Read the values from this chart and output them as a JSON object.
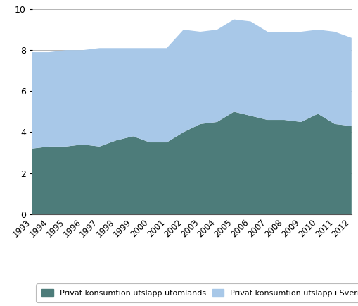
{
  "years": [
    1993,
    1994,
    1995,
    1996,
    1997,
    1998,
    1999,
    2000,
    2001,
    2002,
    2003,
    2004,
    2005,
    2006,
    2007,
    2008,
    2009,
    2010,
    2011,
    2012
  ],
  "utomlands": [
    3.2,
    3.3,
    3.3,
    3.4,
    3.3,
    3.6,
    3.8,
    3.5,
    3.5,
    4.0,
    4.4,
    4.5,
    5.0,
    4.8,
    4.6,
    4.6,
    4.5,
    4.9,
    4.4,
    4.3
  ],
  "sverige": [
    4.7,
    4.6,
    4.7,
    4.6,
    4.8,
    4.5,
    4.3,
    4.6,
    4.6,
    5.0,
    4.5,
    4.5,
    4.5,
    4.6,
    4.3,
    4.3,
    4.4,
    4.1,
    4.5,
    4.3
  ],
  "color_utomlands": "#4d7c7a",
  "color_sverige": "#a8c8e8",
  "ylim": [
    0,
    10
  ],
  "yticks": [
    0,
    2,
    4,
    6,
    8,
    10
  ],
  "legend_label_utomlands": "Privat konsumtion utsläpp utomlands",
  "legend_label_sverige": "Privat konsumtion utsläpp i Sverige",
  "bg_color": "#ffffff",
  "grid_color": "#aaaaaa"
}
